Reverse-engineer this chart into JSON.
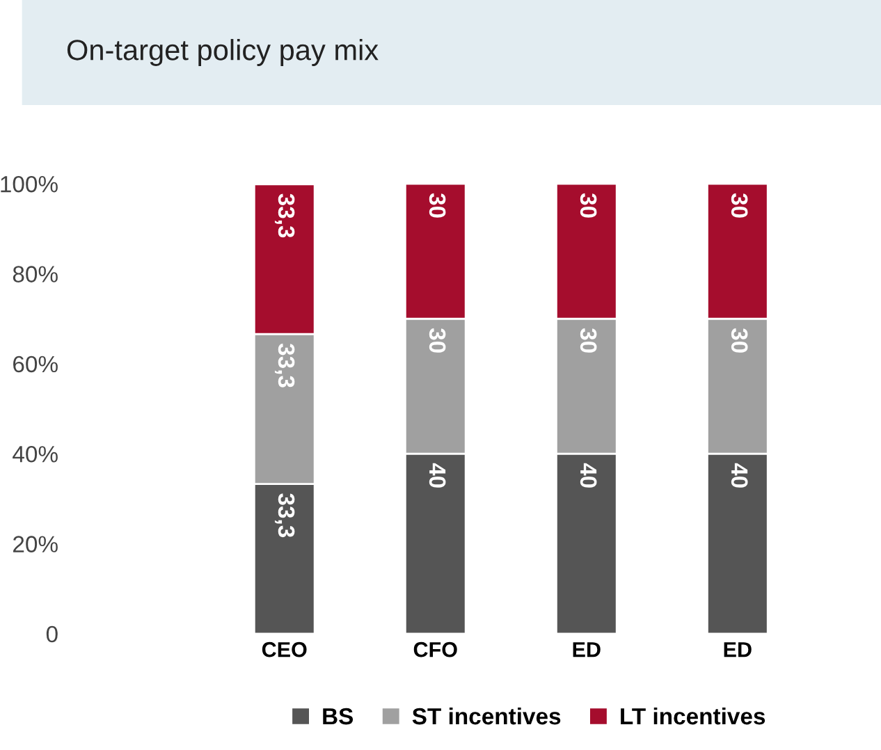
{
  "chart_data": {
    "type": "bar",
    "title": "On-target policy pay mix",
    "stacked": true,
    "categories": [
      "CEO",
      "CFO",
      "ED",
      "ED"
    ],
    "series": [
      {
        "name": "BS",
        "color": "#555555",
        "values": [
          33.3,
          40,
          40,
          40
        ],
        "value_labels": [
          "33,3",
          "40",
          "40",
          "40"
        ]
      },
      {
        "name": "ST incentives",
        "color": "#a0a0a0",
        "values": [
          33.3,
          30,
          30,
          30
        ],
        "value_labels": [
          "33,3",
          "30",
          "30",
          "30"
        ]
      },
      {
        "name": "LT incentives",
        "color": "#a50d2d",
        "values": [
          33.3,
          30,
          30,
          30
        ],
        "value_labels": [
          "33,3",
          "30",
          "30",
          "30"
        ]
      }
    ],
    "ylim": [
      0,
      100
    ],
    "yticks": [
      {
        "value": 0,
        "label": "0"
      },
      {
        "value": 20,
        "label": "20%"
      },
      {
        "value": 40,
        "label": "40%"
      },
      {
        "value": 60,
        "label": "60%"
      },
      {
        "value": 80,
        "label": "80%"
      },
      {
        "value": 100,
        "label": "100%"
      }
    ],
    "grid": false,
    "legend": "bottom"
  }
}
